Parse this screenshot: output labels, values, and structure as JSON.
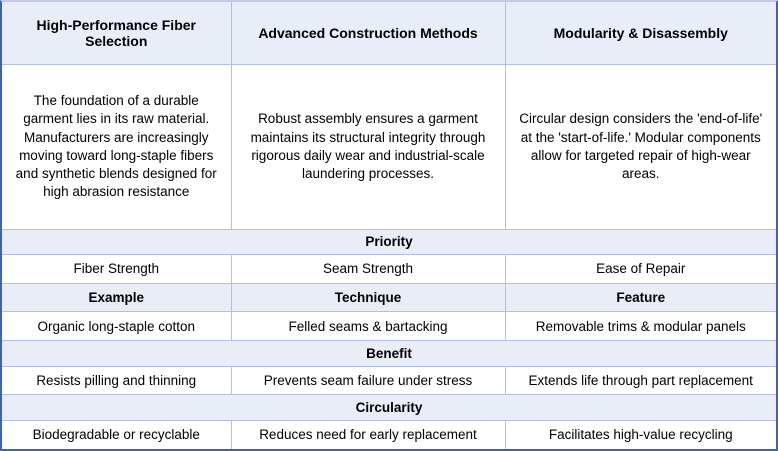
{
  "table": {
    "columns": [
      {
        "header": "High-Performance Fiber Selection",
        "description": "The foundation of a durable garment lies in its raw material. Manufacturers are increasingly moving toward long-staple fibers and synthetic blends designed for high abrasion resistance"
      },
      {
        "header": "Advanced Construction Methods",
        "description": "Robust assembly ensures a garment maintains its structural integrity through rigorous daily wear and industrial-scale laundering processes."
      },
      {
        "header": "Modularity & Disassembly",
        "description": "Circular design considers the 'end-of-life' at the 'start-of-life.' Modular components allow for targeted repair of high-wear areas."
      }
    ],
    "priority": {
      "label": "Priority",
      "values": [
        "Fiber Strength",
        "Seam Strength",
        "Ease of Repair"
      ]
    },
    "attributes": {
      "labels": [
        "Example",
        "Technique",
        "Feature"
      ],
      "values": [
        "Organic long-staple cotton",
        "Felled seams & bartacking",
        "Removable trims & modular panels"
      ]
    },
    "benefit": {
      "label": "Benefit",
      "values": [
        "Resists pilling and thinning",
        "Prevents seam failure under stress",
        "Extends life through part replacement"
      ]
    },
    "circularity": {
      "label": "Circularity",
      "values": [
        "Biodegradable or recyclable",
        "Reduces need for early replacement",
        "Facilitates high-value recycling"
      ]
    },
    "colors": {
      "shaded_row_bg": "#E9EDF8",
      "grid_line": "#B3C0E0",
      "outer_border": "#3E64B0",
      "top_border": "#BFCBE9",
      "text": "#000000"
    }
  }
}
